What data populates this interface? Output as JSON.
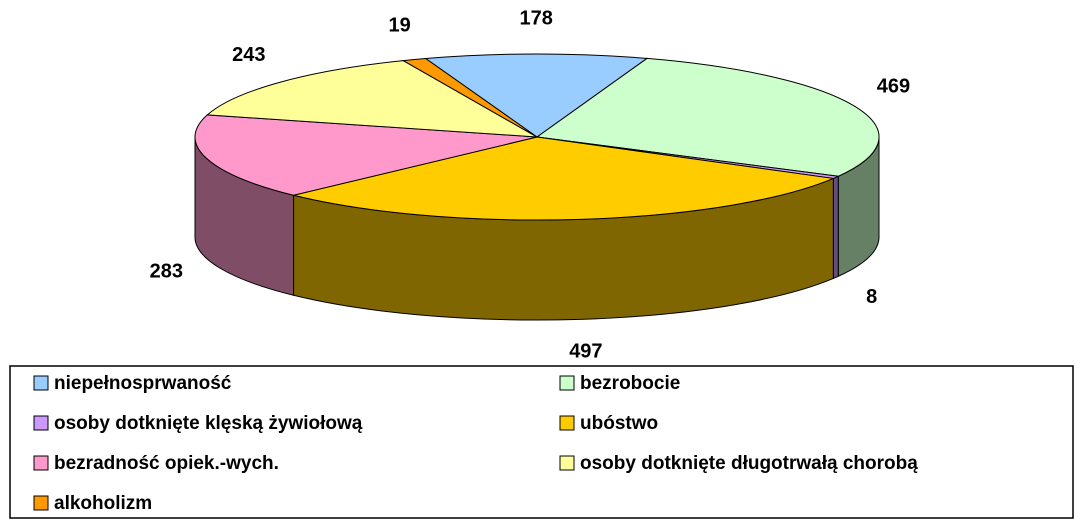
{
  "chart_data": {
    "type": "pie3d",
    "categories": [
      "niepełnosprwaność",
      "bezrobocie",
      "osoby dotknięte klęską żywiołową",
      "ubóstwo",
      "bezradność opiek.-wych.",
      "osoby dotknięte długotrwałą chorobą",
      "alkoholizm"
    ],
    "values": [
      178,
      469,
      8,
      497,
      283,
      243,
      19
    ],
    "colors": [
      "#99ccff",
      "#ccffcc",
      "#cc99ff",
      "#ffcc00",
      "#ff99cc",
      "#ffff99",
      "#ff9900"
    ],
    "legend": "bottom"
  }
}
